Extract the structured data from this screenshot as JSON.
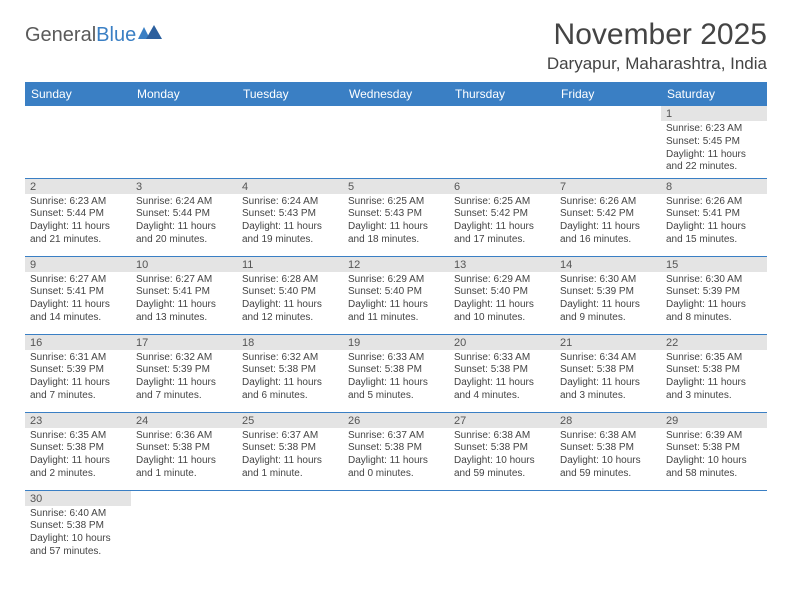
{
  "logo": {
    "part1": "General",
    "part2": "Blue"
  },
  "title": "November 2025",
  "location": "Daryapur, Maharashtra, India",
  "colors": {
    "header_bg": "#3a7fc4",
    "header_text": "#ffffff",
    "daynum_bg": "#e4e4e4",
    "border": "#3a7fc4",
    "text": "#444444",
    "background": "#ffffff"
  },
  "day_headers": [
    "Sunday",
    "Monday",
    "Tuesday",
    "Wednesday",
    "Thursday",
    "Friday",
    "Saturday"
  ],
  "weeks": [
    [
      null,
      null,
      null,
      null,
      null,
      null,
      {
        "n": "1",
        "sunrise": "Sunrise: 6:23 AM",
        "sunset": "Sunset: 5:45 PM",
        "daylight": "Daylight: 11 hours and 22 minutes."
      }
    ],
    [
      {
        "n": "2",
        "sunrise": "Sunrise: 6:23 AM",
        "sunset": "Sunset: 5:44 PM",
        "daylight": "Daylight: 11 hours and 21 minutes."
      },
      {
        "n": "3",
        "sunrise": "Sunrise: 6:24 AM",
        "sunset": "Sunset: 5:44 PM",
        "daylight": "Daylight: 11 hours and 20 minutes."
      },
      {
        "n": "4",
        "sunrise": "Sunrise: 6:24 AM",
        "sunset": "Sunset: 5:43 PM",
        "daylight": "Daylight: 11 hours and 19 minutes."
      },
      {
        "n": "5",
        "sunrise": "Sunrise: 6:25 AM",
        "sunset": "Sunset: 5:43 PM",
        "daylight": "Daylight: 11 hours and 18 minutes."
      },
      {
        "n": "6",
        "sunrise": "Sunrise: 6:25 AM",
        "sunset": "Sunset: 5:42 PM",
        "daylight": "Daylight: 11 hours and 17 minutes."
      },
      {
        "n": "7",
        "sunrise": "Sunrise: 6:26 AM",
        "sunset": "Sunset: 5:42 PM",
        "daylight": "Daylight: 11 hours and 16 minutes."
      },
      {
        "n": "8",
        "sunrise": "Sunrise: 6:26 AM",
        "sunset": "Sunset: 5:41 PM",
        "daylight": "Daylight: 11 hours and 15 minutes."
      }
    ],
    [
      {
        "n": "9",
        "sunrise": "Sunrise: 6:27 AM",
        "sunset": "Sunset: 5:41 PM",
        "daylight": "Daylight: 11 hours and 14 minutes."
      },
      {
        "n": "10",
        "sunrise": "Sunrise: 6:27 AM",
        "sunset": "Sunset: 5:41 PM",
        "daylight": "Daylight: 11 hours and 13 minutes."
      },
      {
        "n": "11",
        "sunrise": "Sunrise: 6:28 AM",
        "sunset": "Sunset: 5:40 PM",
        "daylight": "Daylight: 11 hours and 12 minutes."
      },
      {
        "n": "12",
        "sunrise": "Sunrise: 6:29 AM",
        "sunset": "Sunset: 5:40 PM",
        "daylight": "Daylight: 11 hours and 11 minutes."
      },
      {
        "n": "13",
        "sunrise": "Sunrise: 6:29 AM",
        "sunset": "Sunset: 5:40 PM",
        "daylight": "Daylight: 11 hours and 10 minutes."
      },
      {
        "n": "14",
        "sunrise": "Sunrise: 6:30 AM",
        "sunset": "Sunset: 5:39 PM",
        "daylight": "Daylight: 11 hours and 9 minutes."
      },
      {
        "n": "15",
        "sunrise": "Sunrise: 6:30 AM",
        "sunset": "Sunset: 5:39 PM",
        "daylight": "Daylight: 11 hours and 8 minutes."
      }
    ],
    [
      {
        "n": "16",
        "sunrise": "Sunrise: 6:31 AM",
        "sunset": "Sunset: 5:39 PM",
        "daylight": "Daylight: 11 hours and 7 minutes."
      },
      {
        "n": "17",
        "sunrise": "Sunrise: 6:32 AM",
        "sunset": "Sunset: 5:39 PM",
        "daylight": "Daylight: 11 hours and 7 minutes."
      },
      {
        "n": "18",
        "sunrise": "Sunrise: 6:32 AM",
        "sunset": "Sunset: 5:38 PM",
        "daylight": "Daylight: 11 hours and 6 minutes."
      },
      {
        "n": "19",
        "sunrise": "Sunrise: 6:33 AM",
        "sunset": "Sunset: 5:38 PM",
        "daylight": "Daylight: 11 hours and 5 minutes."
      },
      {
        "n": "20",
        "sunrise": "Sunrise: 6:33 AM",
        "sunset": "Sunset: 5:38 PM",
        "daylight": "Daylight: 11 hours and 4 minutes."
      },
      {
        "n": "21",
        "sunrise": "Sunrise: 6:34 AM",
        "sunset": "Sunset: 5:38 PM",
        "daylight": "Daylight: 11 hours and 3 minutes."
      },
      {
        "n": "22",
        "sunrise": "Sunrise: 6:35 AM",
        "sunset": "Sunset: 5:38 PM",
        "daylight": "Daylight: 11 hours and 3 minutes."
      }
    ],
    [
      {
        "n": "23",
        "sunrise": "Sunrise: 6:35 AM",
        "sunset": "Sunset: 5:38 PM",
        "daylight": "Daylight: 11 hours and 2 minutes."
      },
      {
        "n": "24",
        "sunrise": "Sunrise: 6:36 AM",
        "sunset": "Sunset: 5:38 PM",
        "daylight": "Daylight: 11 hours and 1 minute."
      },
      {
        "n": "25",
        "sunrise": "Sunrise: 6:37 AM",
        "sunset": "Sunset: 5:38 PM",
        "daylight": "Daylight: 11 hours and 1 minute."
      },
      {
        "n": "26",
        "sunrise": "Sunrise: 6:37 AM",
        "sunset": "Sunset: 5:38 PM",
        "daylight": "Daylight: 11 hours and 0 minutes."
      },
      {
        "n": "27",
        "sunrise": "Sunrise: 6:38 AM",
        "sunset": "Sunset: 5:38 PM",
        "daylight": "Daylight: 10 hours and 59 minutes."
      },
      {
        "n": "28",
        "sunrise": "Sunrise: 6:38 AM",
        "sunset": "Sunset: 5:38 PM",
        "daylight": "Daylight: 10 hours and 59 minutes."
      },
      {
        "n": "29",
        "sunrise": "Sunrise: 6:39 AM",
        "sunset": "Sunset: 5:38 PM",
        "daylight": "Daylight: 10 hours and 58 minutes."
      }
    ],
    [
      {
        "n": "30",
        "sunrise": "Sunrise: 6:40 AM",
        "sunset": "Sunset: 5:38 PM",
        "daylight": "Daylight: 10 hours and 57 minutes."
      },
      null,
      null,
      null,
      null,
      null,
      null
    ]
  ]
}
